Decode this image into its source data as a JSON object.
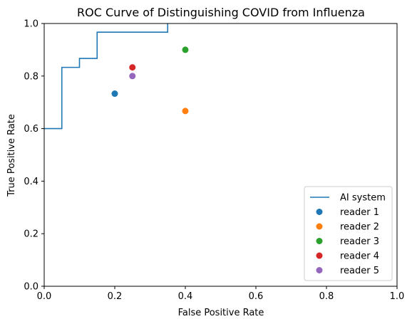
{
  "chart_data": {
    "type": "line",
    "title": "ROC Curve of Distinguishing COVID from Influenza",
    "xlabel": "False Positive Rate",
    "ylabel": "True Positive Rate",
    "xlim": [
      0.0,
      1.0
    ],
    "ylim": [
      0.0,
      1.0
    ],
    "x_ticks": [
      "0.0",
      "0.2",
      "0.4",
      "0.6",
      "0.8",
      "1.0"
    ],
    "y_ticks": [
      "0.0",
      "0.2",
      "0.4",
      "0.6",
      "0.8",
      "1.0"
    ],
    "grid": false,
    "legend_position": "lower-right",
    "series": [
      {
        "name": "AI system",
        "kind": "step-line",
        "color": "#1f77b4",
        "x": [
          0.0,
          0.05,
          0.05,
          0.1,
          0.1,
          0.15,
          0.15,
          0.35,
          0.35
        ],
        "y": [
          0.6,
          0.6,
          0.833,
          0.833,
          0.867,
          0.867,
          0.967,
          0.967,
          1.0
        ]
      },
      {
        "name": "reader 1",
        "kind": "point",
        "color": "#1f77b4",
        "x": [
          0.2
        ],
        "y": [
          0.733
        ]
      },
      {
        "name": "reader 2",
        "kind": "point",
        "color": "#ff7f0e",
        "x": [
          0.4
        ],
        "y": [
          0.667
        ]
      },
      {
        "name": "reader 3",
        "kind": "point",
        "color": "#2ca02c",
        "x": [
          0.4
        ],
        "y": [
          0.9
        ]
      },
      {
        "name": "reader 4",
        "kind": "point",
        "color": "#d62728",
        "x": [
          0.25
        ],
        "y": [
          0.833
        ]
      },
      {
        "name": "reader 5",
        "kind": "point",
        "color": "#9467bd",
        "x": [
          0.25
        ],
        "y": [
          0.8
        ]
      }
    ]
  }
}
